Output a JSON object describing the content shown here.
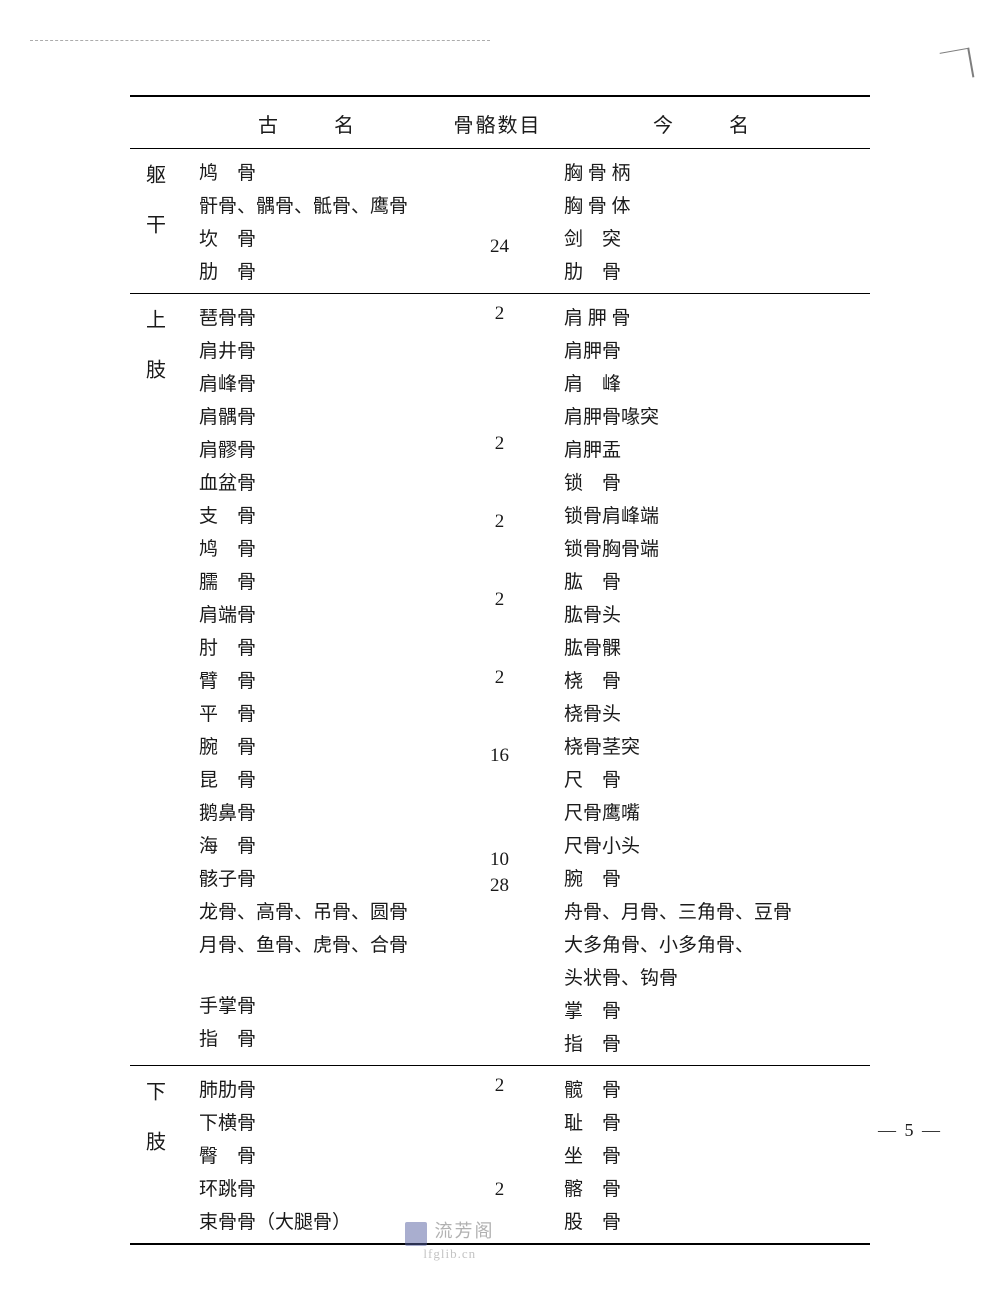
{
  "page_number": "— 5 —",
  "watermark": {
    "cn": "流芳阁",
    "en": "lfglib.cn"
  },
  "headers": {
    "section": "",
    "old_name": "古　名",
    "count": "骨骼数目",
    "new_name": "今　名"
  },
  "colors": {
    "text": "#1a1a1a",
    "rule": "#000000",
    "background": "#ffffff"
  },
  "sections": [
    {
      "label": "躯干",
      "rows": [
        {
          "old": "鸠　骨",
          "count": "",
          "new": "胸 骨 柄",
          "indent_new": 1
        },
        {
          "old": "骭骨、髃骨、骶骨、鹰骨",
          "count": "",
          "new": "胸 骨 体",
          "indent_new": 1
        },
        {
          "old": "坎　骨",
          "count": "",
          "new": "剑　突",
          "indent_new": 1
        },
        {
          "old": "肋　骨",
          "count": "24",
          "new": "肋　骨"
        }
      ]
    },
    {
      "label": "上肢",
      "rows": [
        {
          "old": "琶骨骨",
          "count": "2",
          "new": "肩 胛 骨"
        },
        {
          "old": "肩井骨",
          "indent": 1,
          "count": "",
          "new": "肩胛骨",
          "indent_new": 1
        },
        {
          "old": "肩峰骨",
          "indent": 1,
          "count": "",
          "new": "肩　峰",
          "indent_new": 1
        },
        {
          "old": "肩髃骨",
          "indent": 1,
          "count": "",
          "new": "肩胛骨喙突",
          "indent_new": 1
        },
        {
          "old": "肩髎骨",
          "indent": 1,
          "count": "",
          "new": "肩胛盂",
          "indent_new": 1
        },
        {
          "old": "血盆骨",
          "count": "2",
          "new": "锁　骨"
        },
        {
          "old": "支　骨",
          "indent": 1,
          "count": "",
          "new": "锁骨肩峰端",
          "indent_new": 1
        },
        {
          "old": "鸠　骨",
          "indent": 1,
          "count": "",
          "new": "锁骨胸骨端",
          "indent_new": 1
        },
        {
          "old": "臑　骨",
          "count": "2",
          "new": "肱　骨"
        },
        {
          "old": "肩端骨",
          "indent": 1,
          "count": "",
          "new": "肱骨头",
          "indent_new": 1
        },
        {
          "old": "肘　骨",
          "indent": 1,
          "count": "",
          "new": "肱骨髁",
          "indent_new": 1
        },
        {
          "old": "臂　骨",
          "count": "2",
          "new": "桡　骨"
        },
        {
          "old": "平　骨",
          "indent": 1,
          "count": "",
          "new": "桡骨头",
          "indent_new": 1
        },
        {
          "old": "腕　骨",
          "indent": 1,
          "count": "",
          "new": "桡骨茎突",
          "indent_new": 1
        },
        {
          "old": "昆　骨",
          "count": "2",
          "new": "尺　骨"
        },
        {
          "old": "鹅鼻骨",
          "indent": 1,
          "count": "",
          "new": "尺骨鹰嘴",
          "indent_new": 1
        },
        {
          "old": "海　骨",
          "indent": 1,
          "count": "",
          "new": "尺骨小头",
          "indent_new": 1
        },
        {
          "old": "骸子骨",
          "count": "16",
          "new": "腕　骨"
        },
        {
          "old": "龙骨、高骨、吊骨、圆骨",
          "indent": 1,
          "count": "",
          "new": "舟骨、月骨、三角骨、豆骨",
          "indent_new": 1
        },
        {
          "old": "月骨、鱼骨、虎骨、合骨",
          "indent": 1,
          "count": "",
          "new": "大多角骨、小多角骨、",
          "indent_new": 1
        },
        {
          "old": "",
          "count": "",
          "new": "头状骨、钩骨",
          "indent_new": 1
        },
        {
          "old": "手掌骨",
          "count": "10",
          "new": "掌　骨"
        },
        {
          "old": "指　骨",
          "count": "28",
          "new": "指　骨"
        }
      ]
    },
    {
      "label": "下肢",
      "rows": [
        {
          "old": "肺肋骨",
          "count": "2",
          "new": "髋　骨"
        },
        {
          "old": "下横骨",
          "indent": 1,
          "count": "",
          "new": "耻　骨",
          "indent_new": 1
        },
        {
          "old": "臀　骨",
          "indent": 1,
          "count": "",
          "new": "坐　骨",
          "indent_new": 1
        },
        {
          "old": "环跳骨",
          "indent": 1,
          "count": "",
          "new": "髂　骨",
          "indent_new": 1
        },
        {
          "old": "束骨骨（大腿骨）",
          "count": "2",
          "new": "股　骨"
        }
      ]
    }
  ]
}
